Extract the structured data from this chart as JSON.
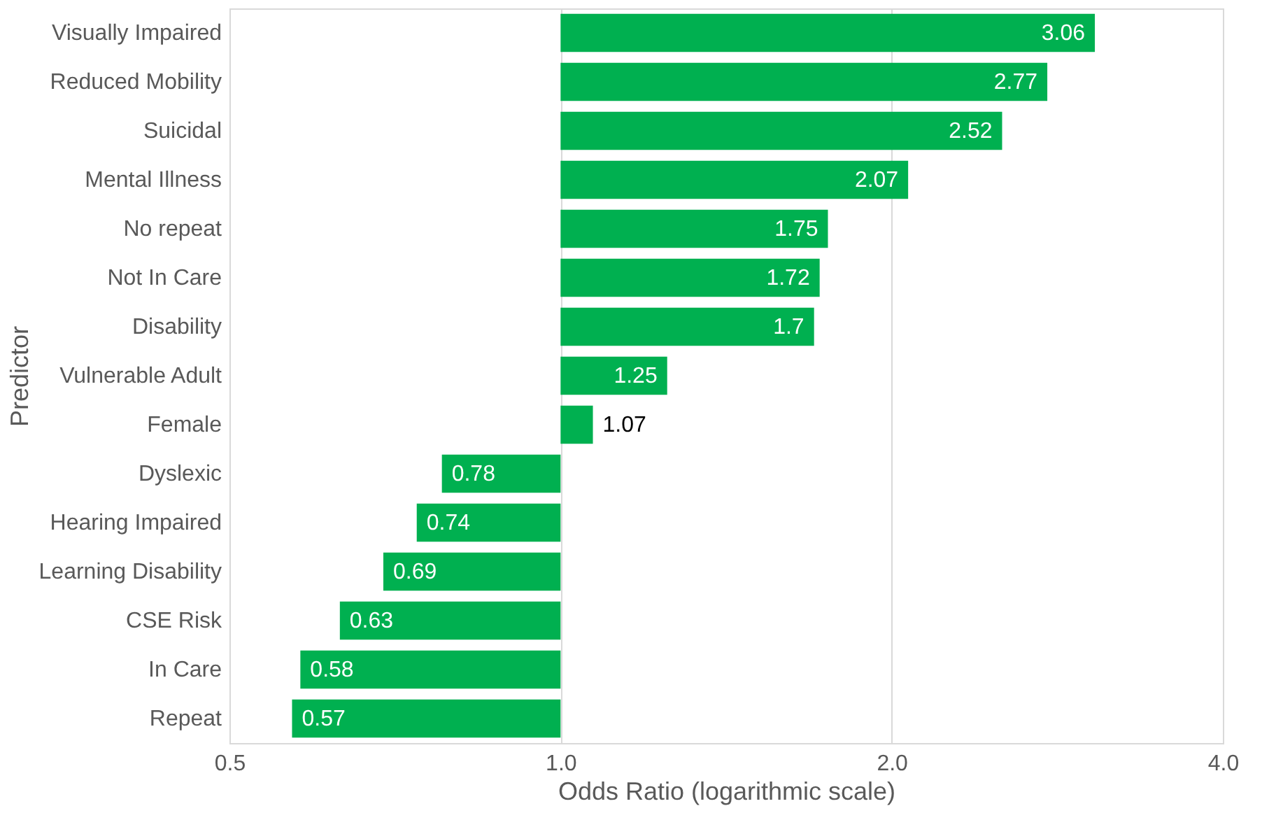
{
  "chart_data": {
    "type": "bar",
    "orientation": "horizontal",
    "xlabel": "Odds Ratio (logarithmic scale)",
    "ylabel": "Predictor",
    "categories": [
      "Visually Impaired",
      "Reduced Mobility",
      "Suicidal",
      "Mental Illness",
      "No repeat",
      "Not In Care",
      "Disability",
      "Vulnerable Adult",
      "Female",
      "Dyslexic",
      "Hearing Impaired",
      "Learning Disability",
      "CSE Risk",
      "In Care",
      "Repeat"
    ],
    "base": [
      1,
      1,
      1,
      1,
      1,
      1,
      1,
      1,
      1,
      1,
      1,
      1,
      1,
      1,
      1
    ],
    "values": [
      2.06,
      1.77,
      1.52,
      1.07,
      0.75,
      0.72,
      0.7,
      0.25,
      0.07,
      -0.22,
      -0.26,
      -0.31,
      -0.37,
      -0.42,
      -0.43
    ],
    "value_labels": [
      "3.06",
      "2.77",
      "2.52",
      "2.07",
      "1.75",
      "1.72",
      "1.7",
      "1.25",
      "1.07",
      "0.78",
      "0.74",
      "0.69",
      "0.63",
      "0.58",
      "0.57"
    ],
    "color": "#00b050",
    "log": "x",
    "xlim": [
      0.5,
      4
    ],
    "xticks": [
      {
        "value": 0.5,
        "label": "0.5"
      },
      {
        "value": 1,
        "label": "1.0"
      },
      {
        "value": 2,
        "label": "2.0"
      },
      {
        "value": 4,
        "label": "4.0"
      }
    ],
    "grid": "x",
    "legend": false
  }
}
